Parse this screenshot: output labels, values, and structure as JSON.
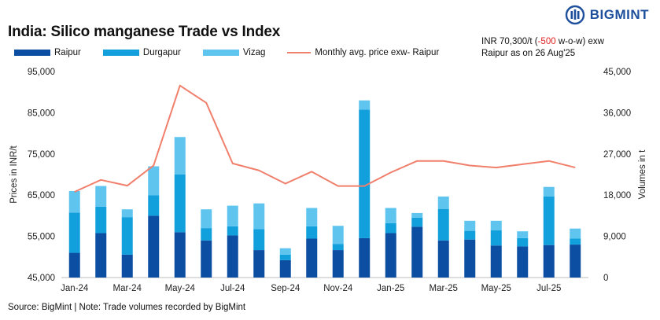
{
  "header": {
    "title": "India: Silico manganese Trade vs Index",
    "brand": "BIGMINT",
    "note_line1_prefix": "INR 70,300/t (",
    "note_line1_change": "-500",
    "note_line1_suffix": " w-o-w) exw",
    "note_line2": "Raipur as on 26 Aug'25"
  },
  "footer": {
    "source": "Source: BigMint | Note: Trade volumes recorded by BigMint"
  },
  "colors": {
    "raipur": "#0b4ea2",
    "durgapur": "#12a0dc",
    "vizag": "#5fc5ef",
    "price": "#f07f6c",
    "brand": "#1d4f9c"
  },
  "chart_data": {
    "type": "bar",
    "stacked": true,
    "title": "India: Silico manganese Trade vs Index",
    "ylabel": "Prices in INR/t",
    "y2label": "Volumes in t",
    "ylim": [
      45000,
      95000
    ],
    "y2lim": [
      0,
      45000
    ],
    "yticks": [
      "45,000",
      "55,000",
      "65,000",
      "75,000",
      "85,000",
      "95,000"
    ],
    "y2ticks": [
      "0",
      "9,000",
      "18,000",
      "27,000",
      "36,000",
      "45,000"
    ],
    "categories": [
      "Jan-24",
      "Feb-24",
      "Mar-24",
      "Apr-24",
      "May-24",
      "Jun-24",
      "Jul-24",
      "Aug-24",
      "Sep-24",
      "Oct-24",
      "Nov-24",
      "Dec-24",
      "Jan-25",
      "Feb-25",
      "Mar-25",
      "Apr-25",
      "May-25",
      "Jun-25",
      "Jul-25",
      "Aug-25"
    ],
    "xtick_labels": [
      "Jan-24",
      "Mar-24",
      "May-24",
      "Jul-24",
      "Sep-24",
      "Nov-24",
      "Jan-25",
      "Mar-25",
      "May-25",
      "Jul-25"
    ],
    "legend": [
      "Raipur",
      "Durgapur",
      "Vizag",
      "Monthly avg. price exw- Raipur"
    ],
    "series": [
      {
        "name": "Raipur",
        "kind": "bar",
        "axis": "right",
        "values": [
          5400,
          9700,
          5000,
          13500,
          9900,
          8100,
          9200,
          6000,
          3800,
          8500,
          6000,
          8600,
          9700,
          11100,
          8100,
          8300,
          7000,
          6800,
          7100,
          7200
        ]
      },
      {
        "name": "Durgapur",
        "kind": "bar",
        "axis": "right",
        "values": [
          8800,
          5800,
          8200,
          4500,
          12600,
          2700,
          2000,
          4600,
          1200,
          2700,
          1300,
          28100,
          2200,
          2000,
          6900,
          1900,
          3300,
          1800,
          10600,
          1300
        ]
      },
      {
        "name": "Vizag",
        "kind": "bar",
        "axis": "right",
        "values": [
          4700,
          4500,
          1700,
          6300,
          8200,
          4100,
          4500,
          5600,
          1400,
          4000,
          4000,
          2000,
          3300,
          1000,
          2700,
          2200,
          2100,
          1500,
          2100,
          2200
        ]
      },
      {
        "name": "Monthly avg. price exw- Raipur",
        "kind": "line",
        "axis": "left",
        "values": [
          65800,
          68700,
          67300,
          72200,
          91600,
          87400,
          72700,
          71000,
          67800,
          70700,
          67200,
          67200,
          70500,
          73300,
          73300,
          72200,
          71700,
          72500,
          73300,
          71700
        ]
      }
    ]
  }
}
